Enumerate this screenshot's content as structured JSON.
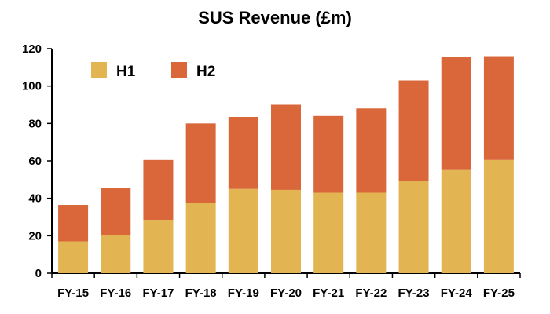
{
  "chart_data": {
    "type": "bar",
    "stacked": true,
    "title": "SUS Revenue (£m)",
    "xlabel": "",
    "ylabel": "",
    "categories": [
      "FY-15",
      "FY-16",
      "FY-17",
      "FY-18",
      "FY-19",
      "FY-20",
      "FY-21",
      "FY-22",
      "FY-23",
      "FY-24",
      "FY-25"
    ],
    "series": [
      {
        "name": "H1",
        "color": "#E3B552",
        "values": [
          17,
          20.5,
          28.5,
          37.5,
          45,
          44.5,
          43,
          43,
          49.5,
          55.5,
          60.5
        ]
      },
      {
        "name": "H2",
        "color": "#D9673A",
        "values": [
          19.5,
          25,
          32,
          42.5,
          38.5,
          45.5,
          41,
          45,
          53.5,
          60,
          55.5
        ]
      }
    ],
    "ylim": [
      0,
      120
    ],
    "yticks": [
      0,
      20,
      40,
      60,
      80,
      100,
      120
    ],
    "grid": false,
    "legend_position": "top-left"
  }
}
